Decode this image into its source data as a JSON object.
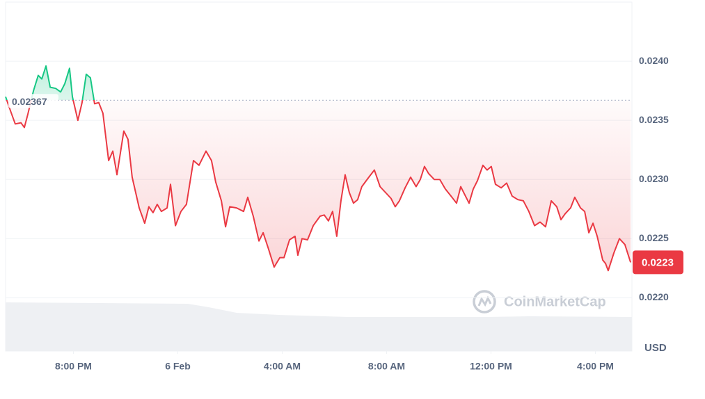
{
  "chart_data": {
    "type": "line",
    "x": [
      17.4,
      17.59,
      17.77,
      17.99,
      18.12,
      18.25,
      18.47,
      18.65,
      18.79,
      18.95,
      19.11,
      19.32,
      19.51,
      19.67,
      19.85,
      19.96,
      20.17,
      20.33,
      20.49,
      20.65,
      20.81,
      20.97,
      21.13,
      21.35,
      21.51,
      21.67,
      21.93,
      22.09,
      22.25,
      22.52,
      22.73,
      22.89,
      23.05,
      23.21,
      23.37,
      23.59,
      23.72,
      23.91,
      24.12,
      24.33,
      24.6,
      24.81,
      25.08,
      25.29,
      25.45,
      25.67,
      25.83,
      25.99,
      26.25,
      26.52,
      26.68,
      26.89,
      27.11,
      27.27,
      27.48,
      27.69,
      27.91,
      28.07,
      28.28,
      28.49,
      28.6,
      28.76,
      28.97,
      29.19,
      29.45,
      29.61,
      29.77,
      29.93,
      30.09,
      30.25,
      30.41,
      30.57,
      30.73,
      30.89,
      31.05,
      31.32,
      31.53,
      31.75,
      31.96,
      32.17,
      32.33,
      32.49,
      32.71,
      32.92,
      33.13,
      33.29,
      33.45,
      33.61,
      33.83,
      34.04,
      34.25,
      34.47,
      34.68,
      34.84,
      35.0,
      35.16,
      35.32,
      35.48,
      35.69,
      35.85,
      36.01,
      36.17,
      36.39,
      36.6,
      36.81,
      37.03,
      37.24,
      37.45,
      37.67,
      37.88,
      38.09,
      38.31,
      38.52,
      38.68,
      38.84,
      39.05,
      39.21,
      39.43,
      39.59,
      39.75,
      39.91,
      40.07,
      40.28,
      40.39,
      40.49,
      40.71,
      40.92,
      41.13,
      41.35
    ],
    "series": [
      {
        "colors": {
          "up": "#16c784",
          "down": "#ea3943"
        },
        "values": [
          0.0237,
          0.02358,
          0.02347,
          0.02348,
          0.02344,
          0.02355,
          0.02375,
          0.02388,
          0.02385,
          0.02396,
          0.02378,
          0.02377,
          0.02374,
          0.02381,
          0.02394,
          0.0237,
          0.0235,
          0.02365,
          0.02389,
          0.02386,
          0.02364,
          0.02365,
          0.02356,
          0.02316,
          0.02324,
          0.02304,
          0.02341,
          0.02334,
          0.02302,
          0.02276,
          0.02263,
          0.02277,
          0.02272,
          0.02279,
          0.02273,
          0.02276,
          0.02296,
          0.02261,
          0.02273,
          0.02279,
          0.02316,
          0.02312,
          0.02324,
          0.02316,
          0.02298,
          0.02282,
          0.0226,
          0.02277,
          0.02276,
          0.02273,
          0.02285,
          0.02269,
          0.02248,
          0.02255,
          0.02241,
          0.02226,
          0.02234,
          0.02234,
          0.02249,
          0.02252,
          0.02236,
          0.0225,
          0.02249,
          0.02261,
          0.02269,
          0.0227,
          0.02265,
          0.02273,
          0.02252,
          0.02282,
          0.02304,
          0.02289,
          0.0228,
          0.02283,
          0.02294,
          0.02302,
          0.02308,
          0.02294,
          0.02289,
          0.02284,
          0.02277,
          0.02282,
          0.02293,
          0.02302,
          0.02294,
          0.023,
          0.02311,
          0.02305,
          0.023,
          0.023,
          0.02292,
          0.02286,
          0.0228,
          0.02294,
          0.02287,
          0.0228,
          0.02292,
          0.02299,
          0.02312,
          0.02308,
          0.02311,
          0.02296,
          0.02293,
          0.02297,
          0.02286,
          0.02283,
          0.02282,
          0.02273,
          0.02261,
          0.02264,
          0.0226,
          0.02282,
          0.02277,
          0.02266,
          0.02271,
          0.02276,
          0.02285,
          0.02276,
          0.02273,
          0.02255,
          0.02263,
          0.02252,
          0.02232,
          0.02229,
          0.02223,
          0.02238,
          0.0225,
          0.02245,
          0.0223
        ]
      }
    ],
    "baseline": 0.02367,
    "current_price": 0.0223,
    "xlim": [
      17.4,
      41.4
    ],
    "xticks": [
      {
        "value": 20,
        "label": "8:00 PM"
      },
      {
        "value": 24,
        "label": "6 Feb"
      },
      {
        "value": 28,
        "label": "4:00 AM"
      },
      {
        "value": 32,
        "label": "8:00 AM"
      },
      {
        "value": 36,
        "label": "12:00 PM"
      },
      {
        "value": 40,
        "label": "4:00 PM"
      }
    ],
    "ylim": [
      0.02155,
      0.0245
    ],
    "yticks": [
      {
        "value": 0.022,
        "label": "0.0220"
      },
      0.0225,
      {
        "value": 0.023,
        "label": "0.0230"
      },
      0.0235,
      {
        "value": 0.024,
        "label": "0.0240"
      }
    ],
    "y_unit": "USD",
    "watermark": "CoinMarketCap",
    "grid": true
  }
}
